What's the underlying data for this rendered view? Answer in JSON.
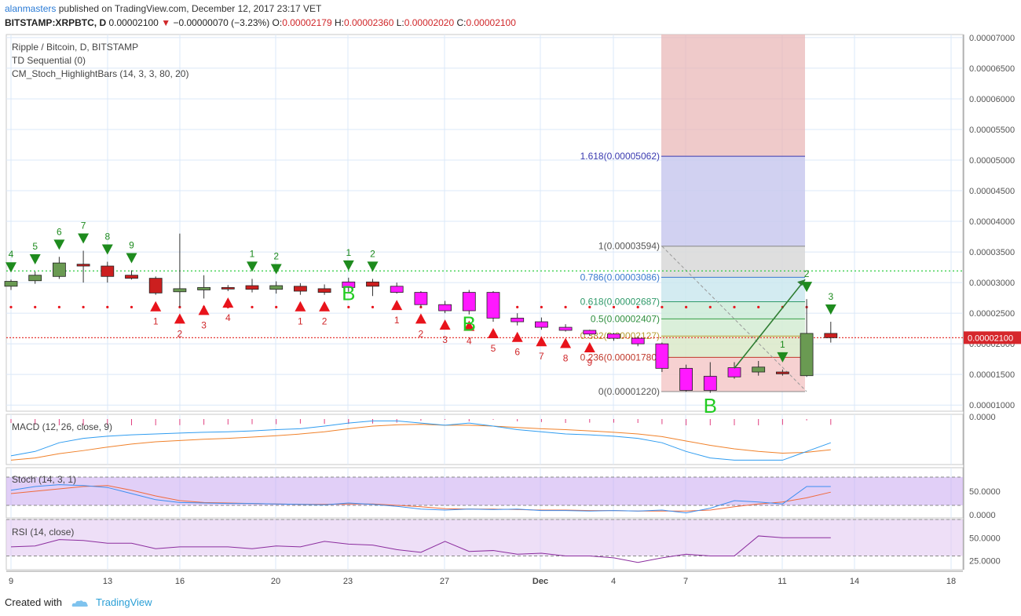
{
  "header": {
    "user": "alanmasters",
    "published_text": "published on TradingView.com, December 12, 2017 23:17 VET",
    "symbol_line": "BITSTAMP:XRPBTC, D",
    "last": "0.00002100",
    "change": "−0.00000070 (−3.23%)",
    "open_label": "O:",
    "open": "0.00002179",
    "high_label": "H:",
    "high": "0.00002360",
    "low_label": "L:",
    "low": "0.00002020",
    "close_label": "C:",
    "close": "0.00002100"
  },
  "legends": {
    "main": "Ripple / Bitcoin, D, BITSTAMP",
    "td": "TD Sequential (0)",
    "cm": "CM_Stoch_HighlightBars (14, 3, 3, 80, 20)",
    "macd": "MACD (12, 26, close, 9)",
    "stoch": "Stoch (14, 3, 1)",
    "rsi": "RSI (14, close)"
  },
  "footer": {
    "created_with": "Created with",
    "brand": "TradingView"
  },
  "colors": {
    "up": "#6a9a52",
    "down": "#cc1f1f",
    "highlight": "#ff19ff",
    "td_buy": "#e8131b",
    "td_sell": "#1a8a1a",
    "macd": "#2f9cf0",
    "signal": "#f0812a",
    "rsi": "#8b2d9e",
    "stoch_k": "#3c8ef0",
    "stoch_d": "#f06a3c"
  },
  "chart_data": {
    "type": "candlestick",
    "price_axis": {
      "min": 9e-06,
      "max": 7e-06,
      "ticks": [
        "0.00007000",
        "0.00006500",
        "0.00006000",
        "0.00005500",
        "0.00005000",
        "0.00004500",
        "0.00004000",
        "0.00003500",
        "0.00003000",
        "0.00002500",
        "0.00002000",
        "0.00001500",
        "0.00001000"
      ],
      "current_label": "0.00002100"
    },
    "x_axis_ticks": [
      "9",
      "13",
      "16",
      "20",
      "23",
      "27",
      "Dec",
      "4",
      "7",
      "11",
      "14",
      "18"
    ],
    "candles": [
      {
        "o": 2.94,
        "h": 3.05,
        "l": 2.88,
        "c": 3.02,
        "style": "up"
      },
      {
        "o": 3.03,
        "h": 3.18,
        "l": 2.98,
        "c": 3.12,
        "style": "up"
      },
      {
        "o": 3.1,
        "h": 3.42,
        "l": 3.06,
        "c": 3.32,
        "style": "up"
      },
      {
        "o": 3.3,
        "h": 3.52,
        "l": 3.0,
        "c": 3.27,
        "style": "down"
      },
      {
        "o": 3.27,
        "h": 3.34,
        "l": 3.0,
        "c": 3.1,
        "style": "down"
      },
      {
        "o": 3.12,
        "h": 3.2,
        "l": 3.05,
        "c": 3.07,
        "style": "down"
      },
      {
        "o": 3.07,
        "h": 3.1,
        "l": 2.8,
        "c": 2.83,
        "style": "down"
      },
      {
        "o": 2.85,
        "h": 3.8,
        "l": 2.6,
        "c": 2.9,
        "style": "up"
      },
      {
        "o": 2.88,
        "h": 3.12,
        "l": 2.74,
        "c": 2.92,
        "style": "up"
      },
      {
        "o": 2.92,
        "h": 2.96,
        "l": 2.86,
        "c": 2.91,
        "style": "down"
      },
      {
        "o": 2.95,
        "h": 3.06,
        "l": 2.84,
        "c": 2.89,
        "style": "down"
      },
      {
        "o": 2.89,
        "h": 3.02,
        "l": 2.82,
        "c": 2.95,
        "style": "up"
      },
      {
        "o": 2.94,
        "h": 2.99,
        "l": 2.8,
        "c": 2.86,
        "style": "down"
      },
      {
        "o": 2.9,
        "h": 2.97,
        "l": 2.8,
        "c": 2.84,
        "style": "down"
      },
      {
        "o": 2.92,
        "h": 3.08,
        "l": 2.85,
        "c": 3.01,
        "style": "highlight"
      },
      {
        "o": 3.01,
        "h": 3.06,
        "l": 2.78,
        "c": 2.94,
        "style": "down"
      },
      {
        "o": 2.94,
        "h": 3.0,
        "l": 2.82,
        "c": 2.84,
        "style": "highlight"
      },
      {
        "o": 2.84,
        "h": 2.86,
        "l": 2.6,
        "c": 2.64,
        "style": "highlight"
      },
      {
        "o": 2.64,
        "h": 2.7,
        "l": 2.5,
        "c": 2.54,
        "style": "highlight"
      },
      {
        "o": 2.54,
        "h": 2.88,
        "l": 2.48,
        "c": 2.84,
        "style": "highlight"
      },
      {
        "o": 2.84,
        "h": 2.86,
        "l": 2.36,
        "c": 2.42,
        "style": "highlight"
      },
      {
        "o": 2.42,
        "h": 2.5,
        "l": 2.3,
        "c": 2.36,
        "style": "highlight"
      },
      {
        "o": 2.36,
        "h": 2.43,
        "l": 2.23,
        "c": 2.27,
        "style": "highlight"
      },
      {
        "o": 2.27,
        "h": 2.32,
        "l": 2.2,
        "c": 2.22,
        "style": "highlight"
      },
      {
        "o": 2.22,
        "h": 2.23,
        "l": 2.13,
        "c": 2.16,
        "style": "highlight"
      },
      {
        "o": 2.16,
        "h": 2.18,
        "l": 2.05,
        "c": 2.09,
        "style": "highlight"
      },
      {
        "o": 2.09,
        "h": 2.12,
        "l": 1.96,
        "c": 2.0,
        "style": "highlight"
      },
      {
        "o": 2.0,
        "h": 2.02,
        "l": 1.54,
        "c": 1.6,
        "style": "highlight"
      },
      {
        "o": 1.6,
        "h": 1.66,
        "l": 1.22,
        "c": 1.24,
        "style": "highlight"
      },
      {
        "o": 1.47,
        "h": 1.7,
        "l": 1.2,
        "c": 1.24,
        "style": "highlight"
      },
      {
        "o": 1.46,
        "h": 1.7,
        "l": 1.43,
        "c": 1.61,
        "style": "highlight"
      },
      {
        "o": 1.54,
        "h": 1.72,
        "l": 1.48,
        "c": 1.62,
        "style": "up"
      },
      {
        "o": 1.54,
        "h": 1.58,
        "l": 1.48,
        "c": 1.51,
        "style": "down"
      },
      {
        "o": 1.48,
        "h": 2.73,
        "l": 1.46,
        "c": 2.17,
        "style": "up"
      },
      {
        "o": 2.17,
        "h": 2.36,
        "l": 2.02,
        "c": 2.1,
        "style": "down"
      }
    ],
    "td_buy_setup": [
      {
        "i": 6,
        "n": "1"
      },
      {
        "i": 7,
        "n": "2"
      },
      {
        "i": 8,
        "n": "3"
      },
      {
        "i": 9,
        "n": "4"
      },
      {
        "i": 12,
        "n": "1"
      },
      {
        "i": 13,
        "n": "2"
      },
      {
        "i": 16,
        "n": "1"
      },
      {
        "i": 17,
        "n": "2"
      },
      {
        "i": 18,
        "n": "3"
      },
      {
        "i": 19,
        "n": "4"
      },
      {
        "i": 20,
        "n": "5"
      },
      {
        "i": 21,
        "n": "6"
      },
      {
        "i": 22,
        "n": "7"
      },
      {
        "i": 23,
        "n": "8"
      },
      {
        "i": 24,
        "n": "9"
      }
    ],
    "td_sell_setup": [
      {
        "i": 0,
        "n": "4"
      },
      {
        "i": 1,
        "n": "5"
      },
      {
        "i": 2,
        "n": "6"
      },
      {
        "i": 3,
        "n": "7"
      },
      {
        "i": 4,
        "n": "8"
      },
      {
        "i": 5,
        "n": "9"
      },
      {
        "i": 10,
        "n": "1"
      },
      {
        "i": 11,
        "n": "2"
      },
      {
        "i": 14,
        "n": "1"
      },
      {
        "i": 15,
        "n": "2"
      },
      {
        "i": 32,
        "n": "1"
      },
      {
        "i": 33,
        "n": "2"
      },
      {
        "i": 34,
        "n": "3"
      }
    ],
    "b_markers": [
      {
        "i": 14,
        "y": 2.84
      },
      {
        "i": 19,
        "y": 2.34
      },
      {
        "i": 29,
        "y": 1.0
      }
    ],
    "resistance_level": 3.19,
    "support_dots_level": 2.6,
    "current_price_level": 2.1,
    "fibonacci": {
      "levels": [
        {
          "ratio": "0",
          "value": "0.00001220",
          "y": 1.22
        },
        {
          "ratio": "0.236",
          "value": "0.00001780",
          "y": 1.78
        },
        {
          "ratio": "0.382",
          "value": "0.00002127",
          "y": 2.127
        },
        {
          "ratio": "0.5",
          "value": "0.00002407",
          "y": 2.407
        },
        {
          "ratio": "0.618",
          "value": "0.00002687",
          "y": 2.687
        },
        {
          "ratio": "0.786",
          "value": "0.00003086",
          "y": 3.086
        },
        {
          "ratio": "1",
          "value": "0.00003594",
          "y": 3.594
        },
        {
          "ratio": "1.618",
          "value": "0.00005062",
          "y": 5.062
        }
      ]
    },
    "macd": {
      "axis_label": "0.0000",
      "macd": [
        -0.9,
        -0.8,
        -0.6,
        -0.5,
        -0.45,
        -0.42,
        -0.4,
        -0.38,
        -0.36,
        -0.35,
        -0.33,
        -0.3,
        -0.28,
        -0.22,
        -0.15,
        -0.1,
        -0.1,
        -0.15,
        -0.2,
        -0.15,
        -0.22,
        -0.3,
        -0.35,
        -0.4,
        -0.42,
        -0.45,
        -0.5,
        -0.6,
        -0.8,
        -0.95,
        -1.0,
        -1.0,
        -1.0,
        -0.8,
        -0.6
      ],
      "signal": [
        -1.0,
        -0.95,
        -0.85,
        -0.78,
        -0.7,
        -0.63,
        -0.58,
        -0.55,
        -0.52,
        -0.5,
        -0.47,
        -0.44,
        -0.4,
        -0.35,
        -0.28,
        -0.22,
        -0.19,
        -0.18,
        -0.2,
        -0.2,
        -0.22,
        -0.25,
        -0.28,
        -0.3,
        -0.33,
        -0.36,
        -0.4,
        -0.46,
        -0.56,
        -0.66,
        -0.74,
        -0.8,
        -0.84,
        -0.82,
        -0.76
      ]
    },
    "stoch": {
      "axis_ticks": [
        "50.0000",
        "0.0000"
      ],
      "k": [
        52,
        60,
        64,
        62,
        58,
        45,
        32,
        26,
        25,
        24,
        24,
        23,
        22,
        21,
        25,
        22,
        18,
        12,
        10,
        12,
        11,
        12,
        9,
        9,
        8,
        9,
        8,
        10,
        4,
        14,
        30,
        27,
        23,
        60,
        60
      ],
      "d": [
        45,
        50,
        55,
        60,
        62,
        52,
        40,
        30,
        26,
        25,
        24,
        23,
        22,
        22,
        23,
        23,
        20,
        17,
        13,
        12,
        12,
        11,
        10,
        10,
        9,
        9,
        8,
        8,
        8,
        10,
        17,
        23,
        27,
        36,
        48
      ]
    },
    "rsi": {
      "axis_ticks": [
        "50.0000",
        "25.0000"
      ],
      "values": [
        40,
        41,
        48,
        47,
        44,
        44,
        38,
        40,
        40,
        40,
        38,
        41,
        40,
        46,
        43,
        42,
        37,
        34,
        46,
        35,
        36,
        32,
        33,
        30,
        30,
        28,
        23,
        28,
        32,
        30,
        30,
        52,
        50,
        50,
        50
      ]
    }
  }
}
